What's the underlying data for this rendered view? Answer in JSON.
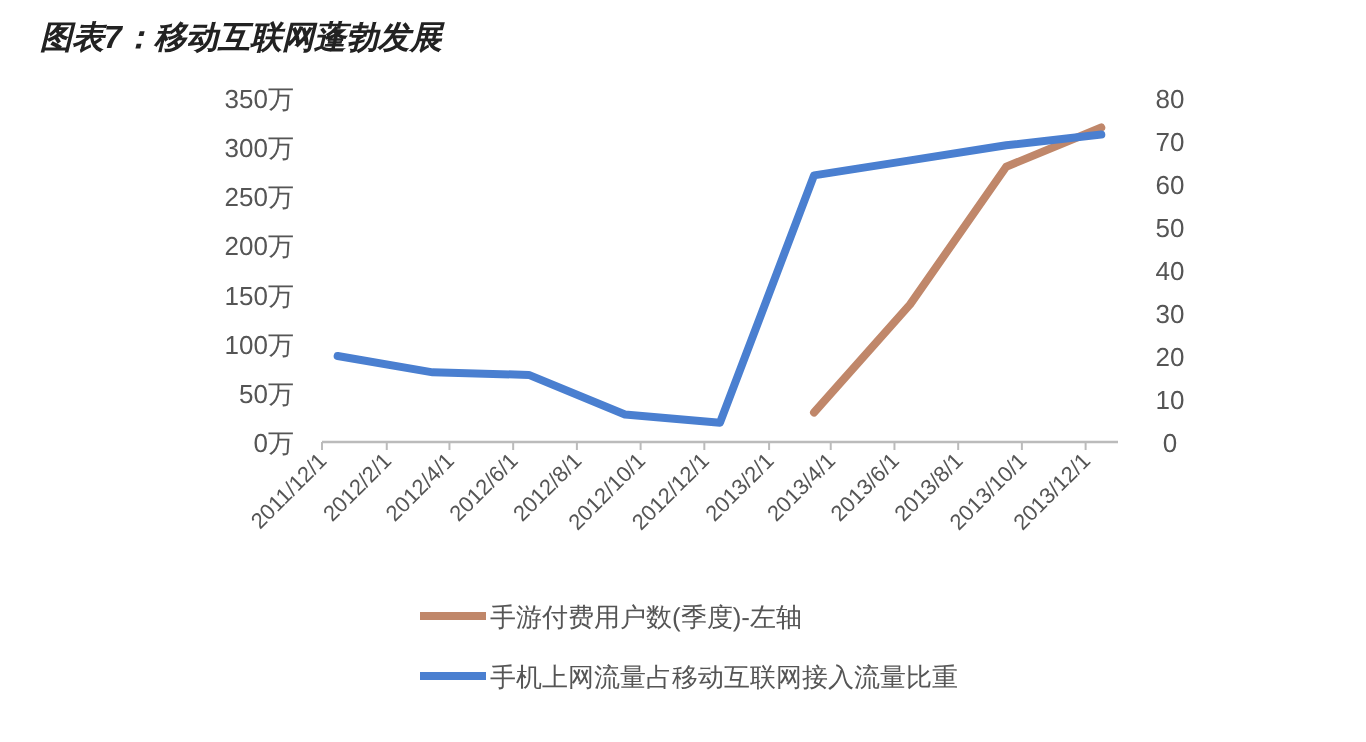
{
  "chart_data": {
    "type": "line",
    "title": "图表7：移动互联网蓬勃发展",
    "xlim": [
      "2011-12-01",
      "2014-01-01"
    ],
    "xticks": [
      {
        "value": "2011-12-01",
        "label": "2011/12/1"
      },
      {
        "value": "2012-02-01",
        "label": "2012/2/1"
      },
      {
        "value": "2012-04-01",
        "label": "2012/4/1"
      },
      {
        "value": "2012-06-01",
        "label": "2012/6/1"
      },
      {
        "value": "2012-08-01",
        "label": "2012/8/1"
      },
      {
        "value": "2012-10-01",
        "label": "2012/10/1"
      },
      {
        "value": "2012-12-01",
        "label": "2012/12/1"
      },
      {
        "value": "2013-02-01",
        "label": "2013/2/1"
      },
      {
        "value": "2013-04-01",
        "label": "2013/4/1"
      },
      {
        "value": "2013-06-01",
        "label": "2013/6/1"
      },
      {
        "value": "2013-08-01",
        "label": "2013/8/1"
      },
      {
        "value": "2013-10-01",
        "label": "2013/10/1"
      },
      {
        "value": "2013-12-01",
        "label": "2013/12/1"
      }
    ],
    "ylim": [
      0,
      350
    ],
    "yticks": [
      {
        "value": 0,
        "label": "0万"
      },
      {
        "value": 50,
        "label": "50万"
      },
      {
        "value": 100,
        "label": "100万"
      },
      {
        "value": 150,
        "label": "150万"
      },
      {
        "value": 200,
        "label": "200万"
      },
      {
        "value": 250,
        "label": "250万"
      },
      {
        "value": 300,
        "label": "300万"
      },
      {
        "value": 350,
        "label": "350万"
      }
    ],
    "y2lim": [
      0,
      80
    ],
    "y2ticks": [
      0,
      10,
      20,
      30,
      40,
      50,
      60,
      70,
      80
    ],
    "legend": "bottom",
    "grid": false,
    "marker": "none",
    "line_style": "solid",
    "series": [
      {
        "name": "手游付费用户数(季度)-左轴",
        "color": "#c0876a",
        "x": [
          "2013-03-16",
          "2013-06-16",
          "2013-09-16",
          "2013-12-16"
        ],
        "values": [
          30,
          140,
          280,
          320
        ]
      },
      {
        "name": "手机上网流量占移动互联网接入流量比重",
        "color": "#4a7fd0",
        "axis": "y2",
        "x": [
          "2011-12-16",
          "2012-03-16",
          "2012-06-16",
          "2012-09-16",
          "2012-12-16",
          "2013-03-16",
          "2013-06-16",
          "2013-09-16",
          "2013-12-16"
        ],
        "values": [
          20,
          16.2,
          15.6,
          6.4,
          4.5,
          62,
          65.5,
          69,
          71.5
        ]
      }
    ]
  }
}
